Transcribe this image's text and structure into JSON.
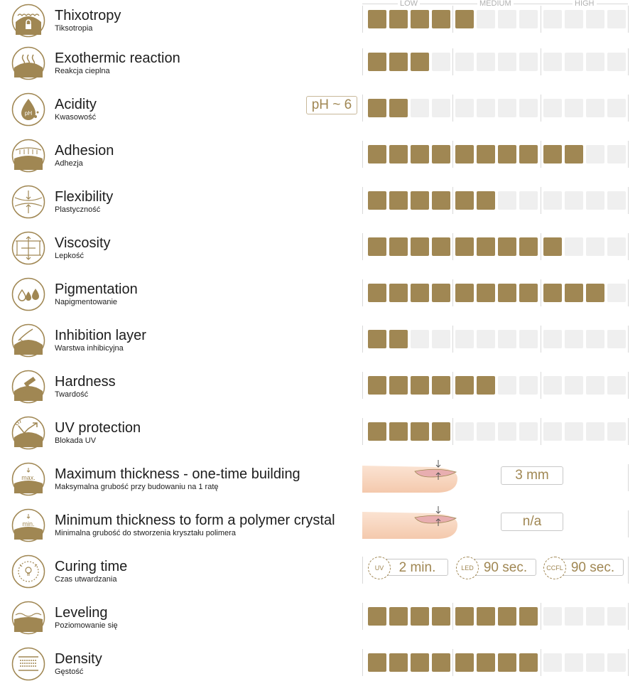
{
  "scale": {
    "low": "LOW",
    "medium": "MEDIUM",
    "high": "HIGH",
    "max": 12
  },
  "colors": {
    "accent": "#a08753",
    "empty": "#efefef",
    "line": "#d8d8d8"
  },
  "rows": [
    {
      "icon": "thixotropy-icon",
      "name": "Thixotropy",
      "sub": "Tiksotropia",
      "type": "meter",
      "level": 5,
      "header": true
    },
    {
      "icon": "exothermic-reaction-icon",
      "name": "Exothermic reaction",
      "sub": "Reakcja cieplna",
      "type": "meter",
      "level": 3
    },
    {
      "icon": "acidity-icon",
      "name": "Acidity",
      "sub": "Kwasowość",
      "type": "meter",
      "level": 2,
      "badge": "pH ~ 6"
    },
    {
      "icon": "adhesion-icon",
      "name": "Adhesion",
      "sub": "Adhezja",
      "type": "meter",
      "level": 10
    },
    {
      "icon": "flexibility-icon",
      "name": "Flexibility",
      "sub": "Plastyczność",
      "type": "meter",
      "level": 6
    },
    {
      "icon": "viscosity-icon",
      "name": "Viscosity",
      "sub": "Lepkość",
      "type": "meter",
      "level": 9
    },
    {
      "icon": "pigmentation-icon",
      "name": "Pigmentation",
      "sub": "Napigmentowanie",
      "type": "meter",
      "level": 11
    },
    {
      "icon": "inhibition-layer-icon",
      "name": "Inhibition layer",
      "sub": "Warstwa inhibicyjna",
      "type": "meter",
      "level": 2
    },
    {
      "icon": "hardness-icon",
      "name": "Hardness",
      "sub": "Twardość",
      "type": "meter",
      "level": 6
    },
    {
      "icon": "uv-protection-icon",
      "name": "UV protection",
      "sub": "Blokada UV",
      "type": "meter",
      "level": 4
    },
    {
      "icon": "max-thickness-icon",
      "name": "Maximum thickness - one-time building",
      "sub": "Maksymalna grubość przy budowaniu na 1 ratę",
      "type": "value",
      "value": "3 mm",
      "icon_label": "max."
    },
    {
      "icon": "min-thickness-icon",
      "name": "Minimum thickness to form a polymer crystal",
      "sub": "Minimalna grubość do stworzenia kryształu polimera",
      "type": "value",
      "value": "n/a",
      "icon_label": "min."
    },
    {
      "icon": "curing-time-icon",
      "name": "Curing time",
      "sub": "Czas utwardzania",
      "type": "curing",
      "times": [
        {
          "lamp": "UV",
          "value": "2 min."
        },
        {
          "lamp": "LED",
          "value": "90 sec."
        },
        {
          "lamp": "CCFL",
          "value": "90 sec."
        }
      ]
    },
    {
      "icon": "leveling-icon",
      "name": "Leveling",
      "sub": "Poziomowanie się",
      "type": "meter",
      "level": 8
    },
    {
      "icon": "density-icon",
      "name": "Density",
      "sub": "Gęstość",
      "type": "meter",
      "level": 8
    }
  ]
}
